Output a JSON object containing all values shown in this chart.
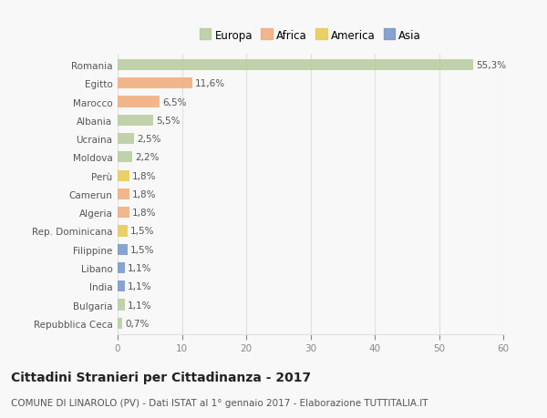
{
  "title": "Cittadini Stranieri per Cittadinanza - 2017",
  "subtitle": "COMUNE DI LINAROLO (PV) - Dati ISTAT al 1° gennaio 2017 - Elaborazione TUTTITALIA.IT",
  "categories": [
    "Romania",
    "Egitto",
    "Marocco",
    "Albania",
    "Ucraina",
    "Moldova",
    "Perù",
    "Camerun",
    "Algeria",
    "Rep. Dominicana",
    "Filippine",
    "Libano",
    "India",
    "Bulgaria",
    "Repubblica Ceca"
  ],
  "values": [
    55.3,
    11.6,
    6.5,
    5.5,
    2.5,
    2.2,
    1.8,
    1.8,
    1.8,
    1.5,
    1.5,
    1.1,
    1.1,
    1.1,
    0.7
  ],
  "labels": [
    "55,3%",
    "11,6%",
    "6,5%",
    "5,5%",
    "2,5%",
    "2,2%",
    "1,8%",
    "1,8%",
    "1,8%",
    "1,5%",
    "1,5%",
    "1,1%",
    "1,1%",
    "1,1%",
    "0,7%"
  ],
  "bar_colors": [
    "#b5c99a",
    "#f0a875",
    "#f0a875",
    "#b5c99a",
    "#b5c99a",
    "#b5c99a",
    "#e8c84a",
    "#f0a875",
    "#f0a875",
    "#e8c84a",
    "#7090c8",
    "#7090c8",
    "#7090c8",
    "#b5c99a",
    "#b5c99a"
  ],
  "legend": [
    {
      "label": "Europa",
      "color": "#b5c99a"
    },
    {
      "label": "Africa",
      "color": "#f0a875"
    },
    {
      "label": "America",
      "color": "#e8c84a"
    },
    {
      "label": "Asia",
      "color": "#7090c8"
    }
  ],
  "xlim": [
    0,
    60
  ],
  "xticks": [
    0,
    10,
    20,
    30,
    40,
    50,
    60
  ],
  "background_color": "#f8f8f8",
  "grid_color": "#e0e0e0",
  "title_fontsize": 10,
  "subtitle_fontsize": 7.5,
  "bar_height": 0.6,
  "label_fontsize": 7.5,
  "ytick_fontsize": 7.5,
  "xtick_fontsize": 7.5,
  "legend_fontsize": 8.5
}
